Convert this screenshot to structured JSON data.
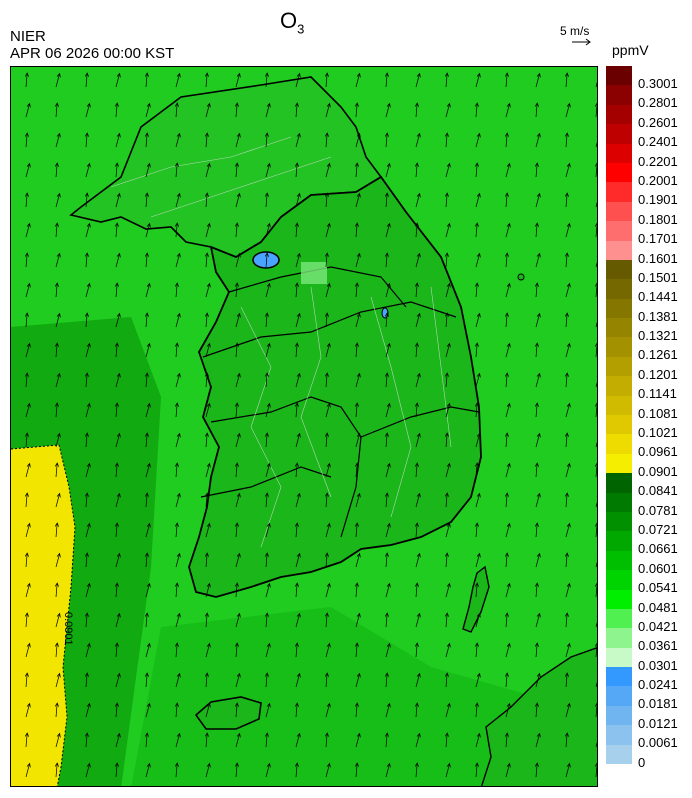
{
  "header": {
    "title": "O",
    "title_sub": "3",
    "agency": "NIER",
    "timestamp": "APR 06 2026 00:00 KST",
    "wind_reference": "5 m/s",
    "unit": "ppmV"
  },
  "map": {
    "contour_label": "0.0901",
    "background_field_color": "#1fd01f",
    "sea_color": "#1fc81f",
    "high_ozone_color": "#f2e600",
    "low_ozone_spot_color": "#4aa3ff",
    "boundary_color": "#000000",
    "district_line_color": "#d8d8d8",
    "wind_direction": "mostly north-northeast"
  },
  "colorbar": {
    "levels": [
      {
        "label": "0.3001",
        "color": "#6b0000"
      },
      {
        "label": "0.2801",
        "color": "#8b0000"
      },
      {
        "label": "0.2601",
        "color": "#a50000"
      },
      {
        "label": "0.2401",
        "color": "#bf0000"
      },
      {
        "label": "0.2201",
        "color": "#dc0000"
      },
      {
        "label": "0.2001",
        "color": "#ff0000"
      },
      {
        "label": "0.1901",
        "color": "#ff2a2a"
      },
      {
        "label": "0.1801",
        "color": "#ff5050"
      },
      {
        "label": "0.1701",
        "color": "#ff6e6e"
      },
      {
        "label": "0.1601",
        "color": "#ff9090"
      },
      {
        "label": "0.1501",
        "color": "#665a00"
      },
      {
        "label": "0.1441",
        "color": "#756800"
      },
      {
        "label": "0.1381",
        "color": "#857600"
      },
      {
        "label": "0.1321",
        "color": "#958400"
      },
      {
        "label": "0.1261",
        "color": "#a39100"
      },
      {
        "label": "0.1201",
        "color": "#b39f00"
      },
      {
        "label": "0.1141",
        "color": "#c2ad00"
      },
      {
        "label": "0.1081",
        "color": "#d1bb00"
      },
      {
        "label": "0.1021",
        "color": "#e0c900"
      },
      {
        "label": "0.0961",
        "color": "#eedb00"
      },
      {
        "label": "0.0901",
        "color": "#f5ee00"
      },
      {
        "label": "0.0841",
        "color": "#006400"
      },
      {
        "label": "0.0781",
        "color": "#007a00"
      },
      {
        "label": "0.0721",
        "color": "#009000"
      },
      {
        "label": "0.0661",
        "color": "#00a800"
      },
      {
        "label": "0.0601",
        "color": "#00be00"
      },
      {
        "label": "0.0541",
        "color": "#00d400"
      },
      {
        "label": "0.0481",
        "color": "#00ee00"
      },
      {
        "label": "0.0421",
        "color": "#50f050"
      },
      {
        "label": "0.0361",
        "color": "#8ef58e"
      },
      {
        "label": "0.0301",
        "color": "#c8fac8"
      },
      {
        "label": "0.0241",
        "color": "#3399ff"
      },
      {
        "label": "0.0181",
        "color": "#55a8f5"
      },
      {
        "label": "0.0121",
        "color": "#70b4f0"
      },
      {
        "label": "0.0061",
        "color": "#8cc2ee"
      },
      {
        "label": "0",
        "color": "#a6d0ec"
      }
    ]
  }
}
